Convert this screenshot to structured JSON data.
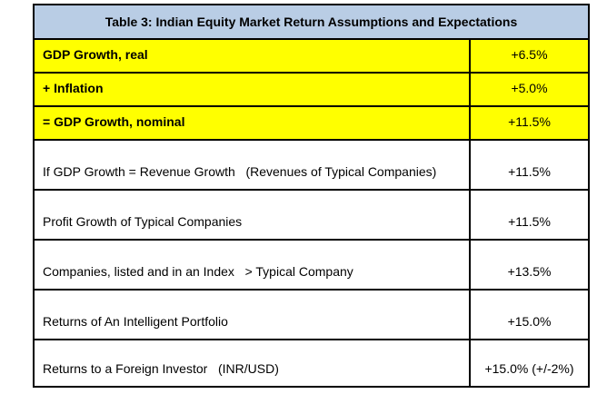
{
  "table": {
    "title": "Table 3: Indian Equity Market Return Assumptions and Expectations",
    "colors": {
      "header_bg": "#B9CDE5",
      "highlight_bg": "#FFFF00",
      "border": "#000000",
      "text": "#000000"
    },
    "rows": [
      {
        "label": "GDP Growth, real",
        "value": "+6.5%",
        "highlight": true
      },
      {
        "label": "+ Inflation",
        "value": "+5.0%",
        "highlight": true
      },
      {
        "label": "= GDP Growth, nominal",
        "value": "+11.5%",
        "highlight": true
      },
      {
        "label": "If GDP Growth = Revenue Growth   (Revenues of Typical Companies)",
        "value": "+11.5%",
        "highlight": false
      },
      {
        "label": "Profit Growth of Typical Companies",
        "value": "+11.5%",
        "highlight": false
      },
      {
        "label": "Companies, listed and in an Index   > Typical Company",
        "value": "+13.5%",
        "highlight": false
      },
      {
        "label": "Returns of An Intelligent Portfolio",
        "value": "+15.0%",
        "highlight": false
      },
      {
        "label": "Returns to a Foreign Investor   (INR/USD)",
        "value": "+15.0% (+/-2%)",
        "highlight": false
      }
    ]
  }
}
